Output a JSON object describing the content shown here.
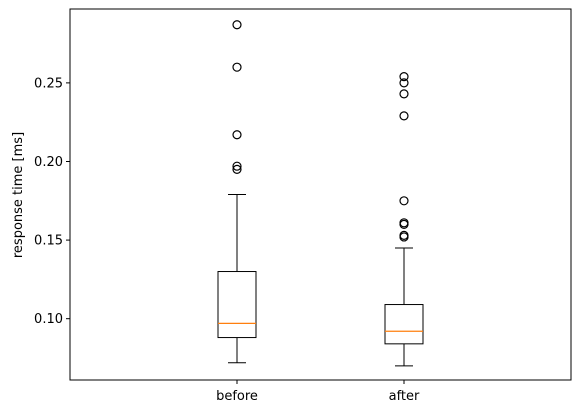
{
  "chart_data": {
    "type": "box",
    "title": "",
    "xlabel": "",
    "ylabel": "response time [ms]",
    "ylim": [
      0.061,
      0.297
    ],
    "yticks": [
      0.1,
      0.15,
      0.2,
      0.25
    ],
    "ytick_labels": [
      "0.10",
      "0.15",
      "0.20",
      "0.25"
    ],
    "grid": false,
    "categories": [
      "before",
      "after"
    ],
    "boxes": [
      {
        "name": "before",
        "whisker_low": 0.072,
        "q1": 0.088,
        "median": 0.097,
        "q3": 0.13,
        "whisker_high": 0.179,
        "outliers": [
          0.195,
          0.197,
          0.217,
          0.26,
          0.287
        ]
      },
      {
        "name": "after",
        "whisker_low": 0.07,
        "q1": 0.084,
        "median": 0.092,
        "q3": 0.109,
        "whisker_high": 0.145,
        "outliers": [
          0.152,
          0.153,
          0.16,
          0.161,
          0.175,
          0.229,
          0.243,
          0.25,
          0.254
        ]
      }
    ],
    "colors": {
      "box": "#000000",
      "median": "#ff7f0e",
      "outlier": "#000000"
    }
  }
}
